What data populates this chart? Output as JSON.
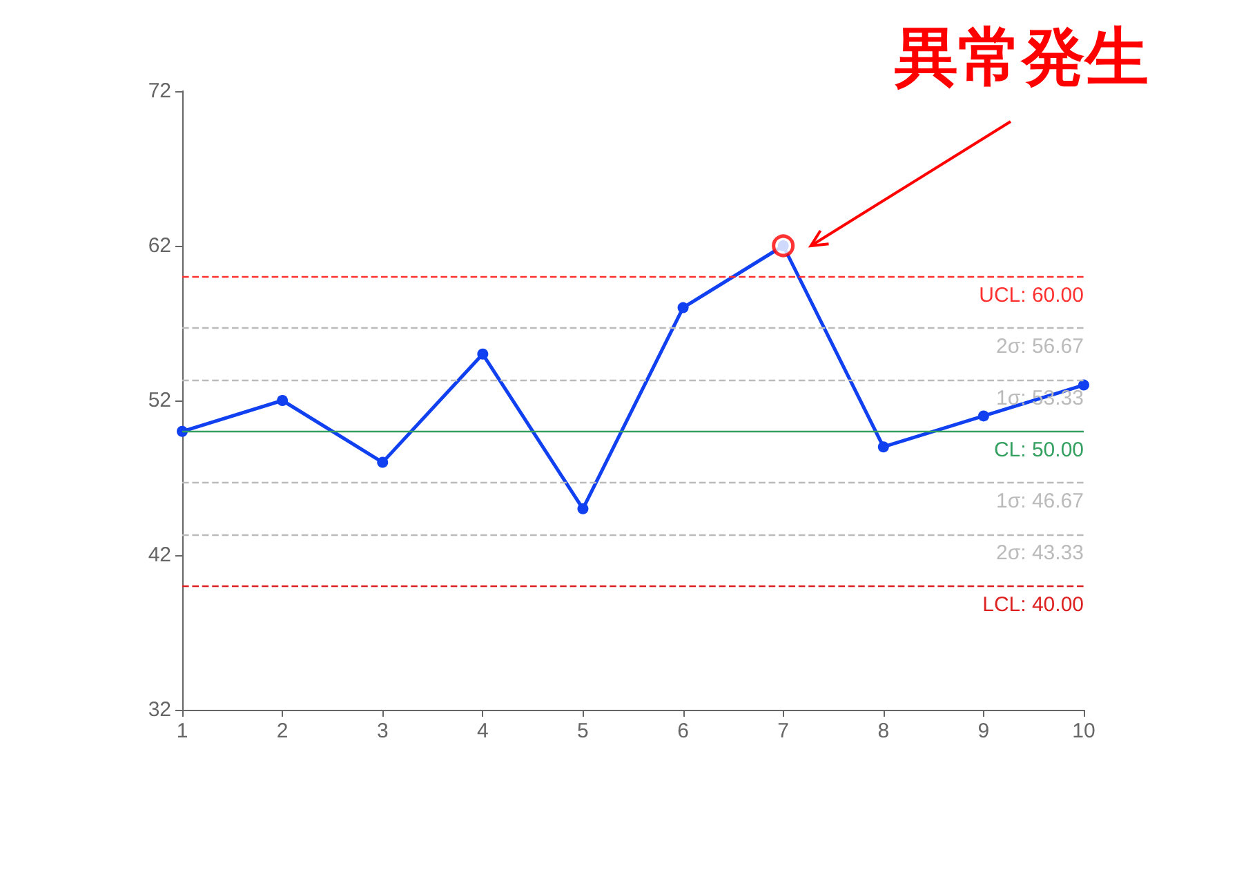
{
  "chart_data": {
    "type": "line",
    "x": [
      1,
      2,
      3,
      4,
      5,
      6,
      7,
      8,
      9,
      10
    ],
    "xlim": [
      1,
      10
    ],
    "xticks": [
      1,
      2,
      3,
      4,
      5,
      6,
      7,
      8,
      9,
      10
    ],
    "ylim": [
      32,
      72
    ],
    "yticks": [
      32,
      42,
      52,
      62,
      72
    ],
    "grid": false,
    "marker": "circle",
    "line_style": "solid",
    "series": [
      {
        "color": "#1040f0",
        "values": [
          50,
          52,
          48,
          55,
          45,
          58,
          62,
          49,
          51,
          53
        ]
      },
      {
        "type": "scatter",
        "color": "#ff0000",
        "x": [
          7
        ],
        "values": [
          62
        ]
      }
    ],
    "ref_lines": [
      {
        "axis": "y",
        "value": 60,
        "label": "UCL: 60.00",
        "color": "#ff3030",
        "line_style": "dashed"
      },
      {
        "axis": "y",
        "value": 56.67,
        "label": "2σ: 56.67",
        "color": "#bbbbbb",
        "line_style": "dashed"
      },
      {
        "axis": "y",
        "value": 53.33,
        "label": "1σ: 53.33",
        "color": "#bbbbbb",
        "line_style": "dashed"
      },
      {
        "axis": "y",
        "value": 50,
        "label": "CL: 50.00",
        "color": "#33a060",
        "line_style": "solid"
      },
      {
        "axis": "y",
        "value": 46.67,
        "label": "1σ: 46.67",
        "color": "#bbbbbb",
        "line_style": "dashed"
      },
      {
        "axis": "y",
        "value": 43.33,
        "label": "2σ: 43.33",
        "color": "#bbbbbb",
        "line_style": "dashed"
      },
      {
        "axis": "y",
        "value": 40,
        "label": "LCL: 40.00",
        "color": "#dd2020",
        "line_style": "dashed"
      }
    ],
    "annotations": [
      {
        "text": "異常発生",
        "x": 7,
        "y": 62
      }
    ]
  }
}
